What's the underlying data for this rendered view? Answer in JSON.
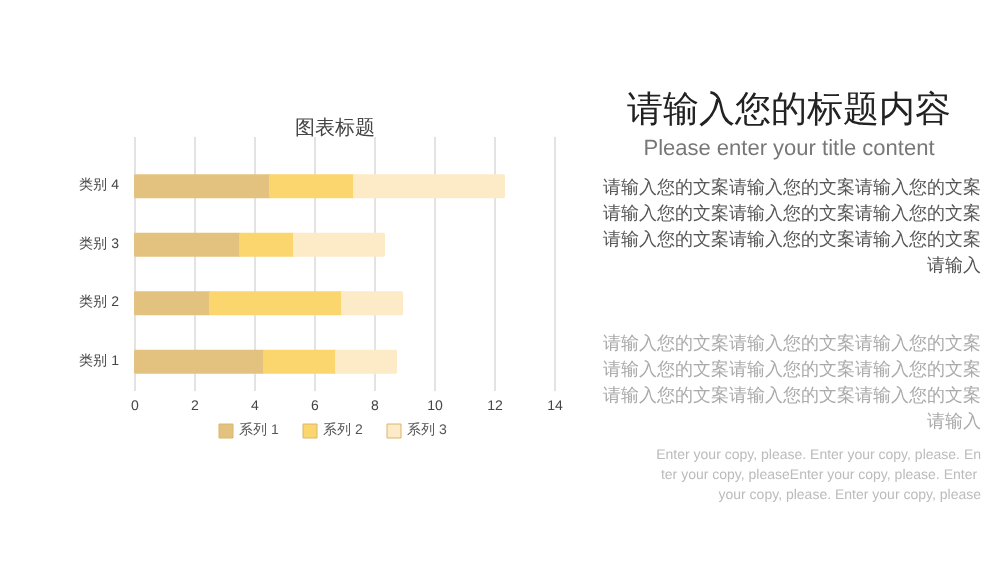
{
  "chart_data": {
    "type": "bar",
    "orientation": "horizontal",
    "stacked": true,
    "title": "图表标题",
    "categories": [
      "类别 4",
      "类别 3",
      "类别 2",
      "类别 1"
    ],
    "series": [
      {
        "name": "系列 1",
        "color": "#e3c27f",
        "values": [
          4.5,
          3.5,
          2.5,
          4.3
        ]
      },
      {
        "name": "系列 2",
        "color": "#fbd56e",
        "values": [
          2.8,
          1.8,
          4.4,
          2.4
        ]
      },
      {
        "name": "系列 3",
        "color": "#fdebc8",
        "values": [
          5,
          3,
          2,
          2
        ]
      }
    ],
    "xlim": [
      0,
      14
    ],
    "xticks": [
      0,
      2,
      4,
      6,
      8,
      10,
      12,
      14
    ],
    "grid": "x",
    "legend": "bottom",
    "annotations": [
      "请输入您的标题内容",
      "Please enter your title content",
      "请输入您的文案请输入您的文案请输入您的文案请输入您的文案请输入您的文案请输入您的文案请输入您的文案请输入您的文案请输入您的文案请输入",
      "请输入您的文案请输入您的文案请输入您的文案请输入您的文案请输入您的文案请输入您的文案请输入您的文案请输入您的文案请输入您的文案请输入",
      "Enter your copy, please. Enter your copy, please. Enter your copy, pleaseEnter your copy, please. Enter your copy, please. Enter your copy, please"
    ]
  }
}
